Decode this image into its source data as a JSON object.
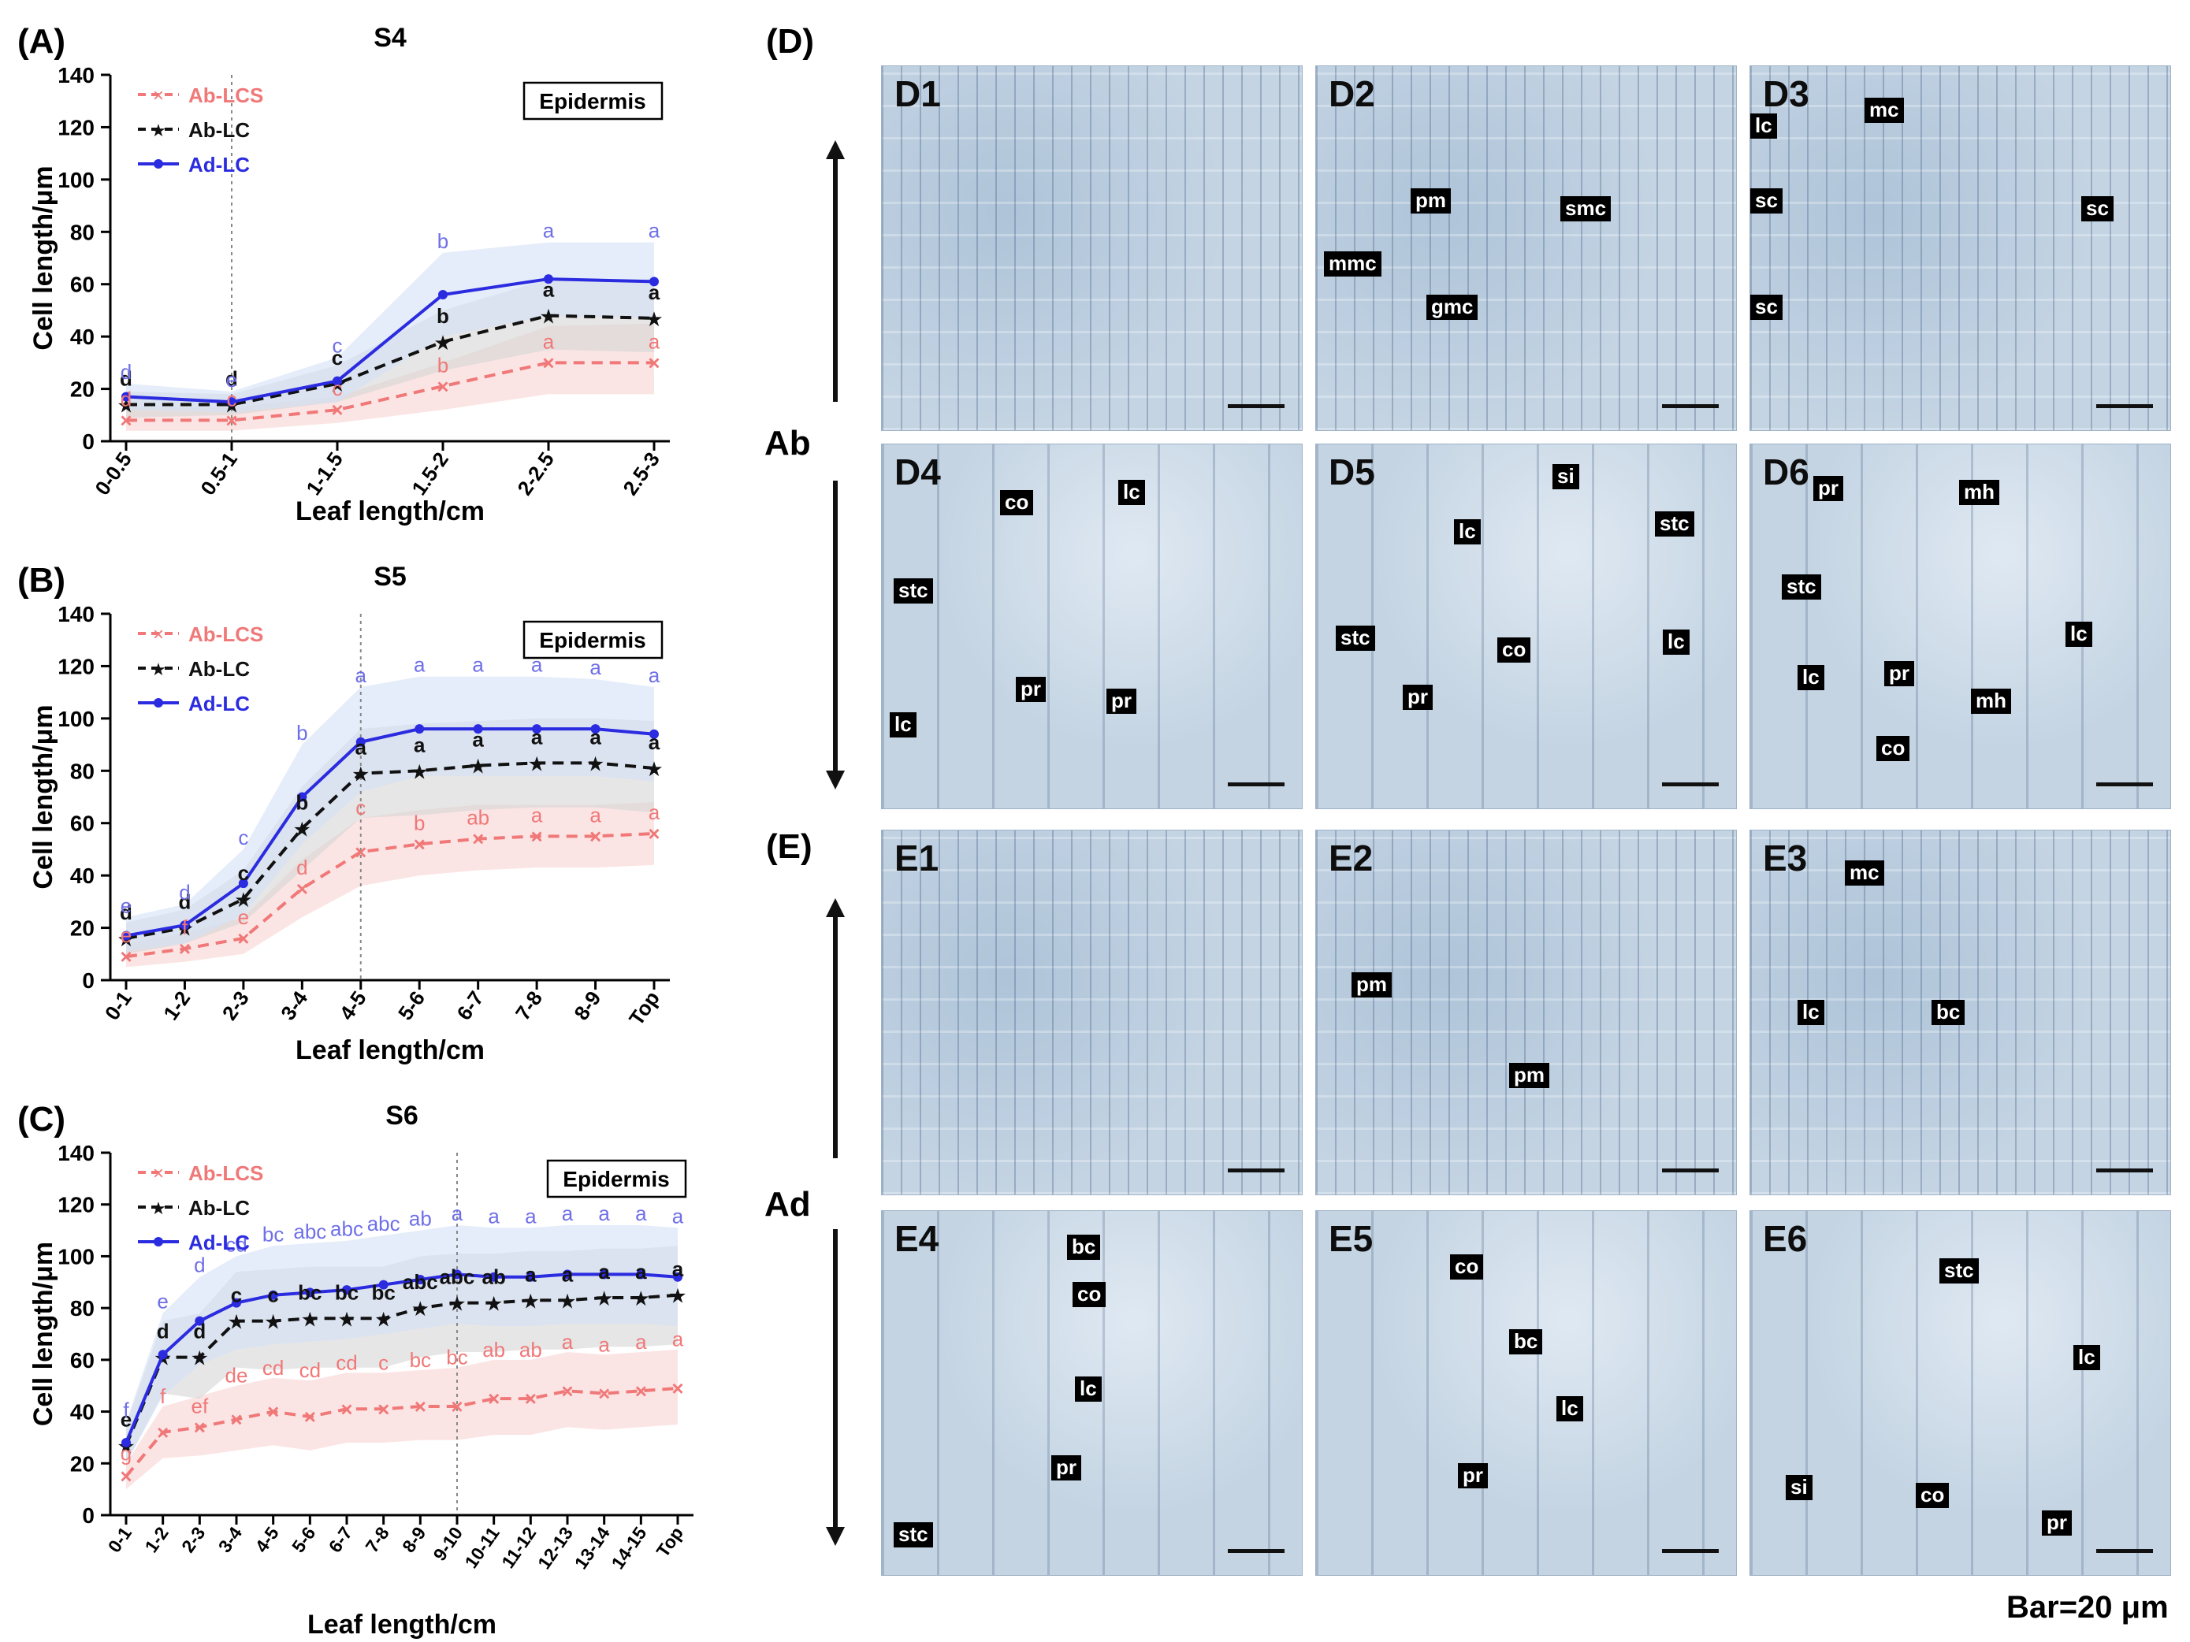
{
  "panel_letters": {
    "A": "(A)",
    "B": "(B)",
    "C": "(C)",
    "D": "(D)",
    "E": "(E)"
  },
  "axis_ticks_y": [
    "0",
    "20",
    "40",
    "60",
    "80",
    "100",
    "120",
    "140"
  ],
  "chart_data": [
    {
      "type": "line",
      "title": "S4",
      "xlabel": "Leaf length/cm",
      "ylabel": "Cell length/μm",
      "ylim": [
        0,
        140
      ],
      "legend": [
        "Ab-LCS",
        "Ab-LC",
        "Ad-LC"
      ],
      "box_label": "Epidermis",
      "categories": [
        "0-0.5",
        "0.5-1",
        "1-1.5",
        "1.5-2",
        "2-2.5",
        "2.5-3"
      ],
      "vline_after_category": 1,
      "series": [
        {
          "name": "Ab-LCS",
          "color": "#f07878",
          "values": [
            8,
            8,
            12,
            21,
            30,
            30
          ],
          "letters": [
            "d",
            "c",
            "c",
            "b",
            "a",
            "a"
          ],
          "upper": [
            13,
            13,
            17,
            30,
            44,
            45
          ],
          "lower": [
            4,
            4,
            7,
            12,
            18,
            18
          ]
        },
        {
          "name": "Ab-LC",
          "color": "#111111",
          "values": [
            14,
            14,
            22,
            38,
            48,
            47
          ],
          "letters": [
            "d",
            "d",
            "c",
            "b",
            "a",
            "a"
          ],
          "upper": [
            19,
            18,
            29,
            50,
            62,
            62
          ],
          "lower": [
            9,
            10,
            15,
            27,
            35,
            34
          ]
        },
        {
          "name": "Ad-LC",
          "color": "#2b2be0",
          "values": [
            17,
            15,
            23,
            56,
            62,
            61
          ],
          "letters": [
            "d",
            "e",
            "c",
            "b",
            "a",
            "a"
          ],
          "upper": [
            22,
            19,
            32,
            72,
            76,
            76
          ],
          "lower": [
            12,
            11,
            15,
            40,
            48,
            47
          ]
        }
      ]
    },
    {
      "type": "line",
      "title": "S5",
      "xlabel": "Leaf length/cm",
      "ylabel": "Cell length/μm",
      "ylim": [
        0,
        140
      ],
      "legend": [
        "Ab-LCS",
        "Ab-LC",
        "Ad-LC"
      ],
      "box_label": "Epidermis",
      "categories": [
        "0-1",
        "1-2",
        "2-3",
        "3-4",
        "4-5",
        "5-6",
        "6-7",
        "7-8",
        "8-9",
        "Top"
      ],
      "vline_after_category": 4,
      "series": [
        {
          "name": "Ab-LCS",
          "color": "#f07878",
          "values": [
            9,
            12,
            16,
            35,
            49,
            52,
            54,
            55,
            55,
            56
          ],
          "letters": [
            "e",
            "f",
            "e",
            "d",
            "c",
            "b",
            "ab",
            "a",
            "a",
            "a"
          ],
          "upper": [
            14,
            18,
            24,
            46,
            62,
            65,
            67,
            67,
            67,
            68
          ],
          "lower": [
            5,
            7,
            10,
            24,
            36,
            40,
            42,
            43,
            43,
            44
          ],
          "marker_letters": [
            "ab"
          ]
        },
        {
          "name": "Ab-LC",
          "color": "#111111",
          "values": [
            16,
            20,
            31,
            58,
            79,
            80,
            82,
            83,
            83,
            81
          ],
          "letters": [
            "d",
            "d",
            "c",
            "b",
            "a",
            "a",
            "a",
            "a",
            "a",
            "a"
          ],
          "upper": [
            22,
            27,
            42,
            74,
            96,
            98,
            99,
            100,
            100,
            99
          ],
          "lower": [
            10,
            14,
            22,
            42,
            62,
            63,
            65,
            66,
            66,
            64
          ]
        },
        {
          "name": "Ad-LC",
          "color": "#2b2be0",
          "values": [
            17,
            21,
            37,
            70,
            91,
            96,
            96,
            96,
            96,
            94
          ],
          "letters": [
            "e",
            "d",
            "c",
            "b",
            "a",
            "a",
            "a",
            "a",
            "a",
            "a"
          ],
          "upper": [
            24,
            29,
            50,
            90,
            112,
            116,
            116,
            116,
            115,
            112
          ],
          "lower": [
            11,
            14,
            25,
            52,
            72,
            78,
            78,
            78,
            78,
            76
          ]
        }
      ]
    },
    {
      "type": "line",
      "title": "S6",
      "xlabel": "Leaf length/cm",
      "ylabel": "Cell length/μm",
      "ylim": [
        0,
        140
      ],
      "legend": [
        "Ab-LCS",
        "Ab-LC",
        "Ad-LC"
      ],
      "box_label": "Epidermis",
      "categories": [
        "0-1",
        "1-2",
        "2-3",
        "3-4",
        "4-5",
        "5-6",
        "6-7",
        "7-8",
        "8-9",
        "9-10",
        "10-11",
        "11-12",
        "12-13",
        "13-14",
        "14-15",
        "Top"
      ],
      "vline_after_category": 9,
      "series": [
        {
          "name": "Ab-LCS",
          "color": "#f07878",
          "values": [
            15,
            32,
            34,
            37,
            40,
            38,
            41,
            41,
            42,
            42,
            45,
            45,
            48,
            47,
            48,
            49
          ],
          "letters": [
            "g",
            "f",
            "ef",
            "de",
            "cd",
            "cd",
            "cd",
            "c",
            "bc",
            "bc",
            "ab",
            "ab",
            "a",
            "a",
            "a",
            "a"
          ],
          "upper": [
            20,
            42,
            46,
            50,
            53,
            52,
            55,
            55,
            56,
            57,
            60,
            60,
            63,
            62,
            63,
            64
          ],
          "lower": [
            10,
            22,
            23,
            25,
            27,
            25,
            28,
            28,
            29,
            29,
            31,
            31,
            34,
            33,
            34,
            35
          ]
        },
        {
          "name": "Ab-LC",
          "color": "#111111",
          "values": [
            27,
            61,
            61,
            75,
            75,
            76,
            76,
            76,
            80,
            82,
            82,
            83,
            83,
            84,
            84,
            85
          ],
          "letters": [
            "e",
            "d",
            "d",
            "c",
            "c",
            "bc",
            "bc",
            "bc",
            "abc",
            "abc",
            "ab",
            "a",
            "a",
            "a",
            "a",
            "a"
          ],
          "upper": [
            35,
            75,
            78,
            94,
            95,
            96,
            96,
            96,
            100,
            101,
            101,
            102,
            102,
            103,
            103,
            104
          ],
          "lower": [
            20,
            47,
            45,
            57,
            56,
            57,
            57,
            57,
            61,
            63,
            63,
            64,
            64,
            65,
            65,
            66
          ]
        },
        {
          "name": "Ad-LC",
          "color": "#2b2be0",
          "values": [
            28,
            62,
            75,
            82,
            85,
            86,
            87,
            89,
            91,
            93,
            92,
            92,
            93,
            93,
            93,
            92
          ],
          "letters": [
            "f",
            "e",
            "d",
            "cd",
            "bc",
            "abc",
            "abc",
            "abc",
            "ab",
            "a",
            "a",
            "a",
            "a",
            "a",
            "a",
            "a"
          ],
          "upper": [
            36,
            78,
            92,
            100,
            104,
            105,
            106,
            108,
            110,
            112,
            111,
            111,
            112,
            112,
            112,
            111
          ],
          "lower": [
            20,
            46,
            58,
            64,
            66,
            67,
            68,
            70,
            72,
            74,
            73,
            73,
            74,
            74,
            74,
            73
          ]
        }
      ]
    }
  ],
  "micro_panels": {
    "D": [
      {
        "label": "D1",
        "tags": []
      },
      {
        "label": "D2",
        "tags": [
          "pm",
          "smc",
          "mmc",
          "gmc"
        ]
      },
      {
        "label": "D3",
        "tags": [
          "lc",
          "mc",
          "sc",
          "sc",
          "sc"
        ]
      },
      {
        "label": "D4",
        "tags": [
          "co",
          "lc",
          "stc",
          "pr",
          "pr",
          "lc"
        ]
      },
      {
        "label": "D5",
        "tags": [
          "si",
          "stc",
          "lc",
          "stc",
          "co",
          "lc",
          "pr"
        ]
      },
      {
        "label": "D6",
        "tags": [
          "pr",
          "mh",
          "stc",
          "lc",
          "lc",
          "pr",
          "mh",
          "co"
        ]
      }
    ],
    "E": [
      {
        "label": "E1",
        "tags": []
      },
      {
        "label": "E2",
        "tags": [
          "pm",
          "pm"
        ]
      },
      {
        "label": "E3",
        "tags": [
          "mc",
          "lc",
          "bc"
        ]
      },
      {
        "label": "E4",
        "tags": [
          "bc",
          "co",
          "lc",
          "pr",
          "stc"
        ]
      },
      {
        "label": "E5",
        "tags": [
          "co",
          "bc",
          "lc",
          "pr"
        ]
      },
      {
        "label": "E6",
        "tags": [
          "stc",
          "lc",
          "si",
          "co",
          "pr"
        ]
      }
    ]
  },
  "side_labels": {
    "ab": "Ab",
    "ad": "Ad"
  },
  "scale_label": "Bar=20 μm",
  "colors": {
    "pink": "#f07878",
    "black": "#111111",
    "blue": "#2b2be0",
    "band_pink": "#f9d4d2",
    "band_grey": "#d6d6d6",
    "band_blue": "#d4e1f6"
  }
}
